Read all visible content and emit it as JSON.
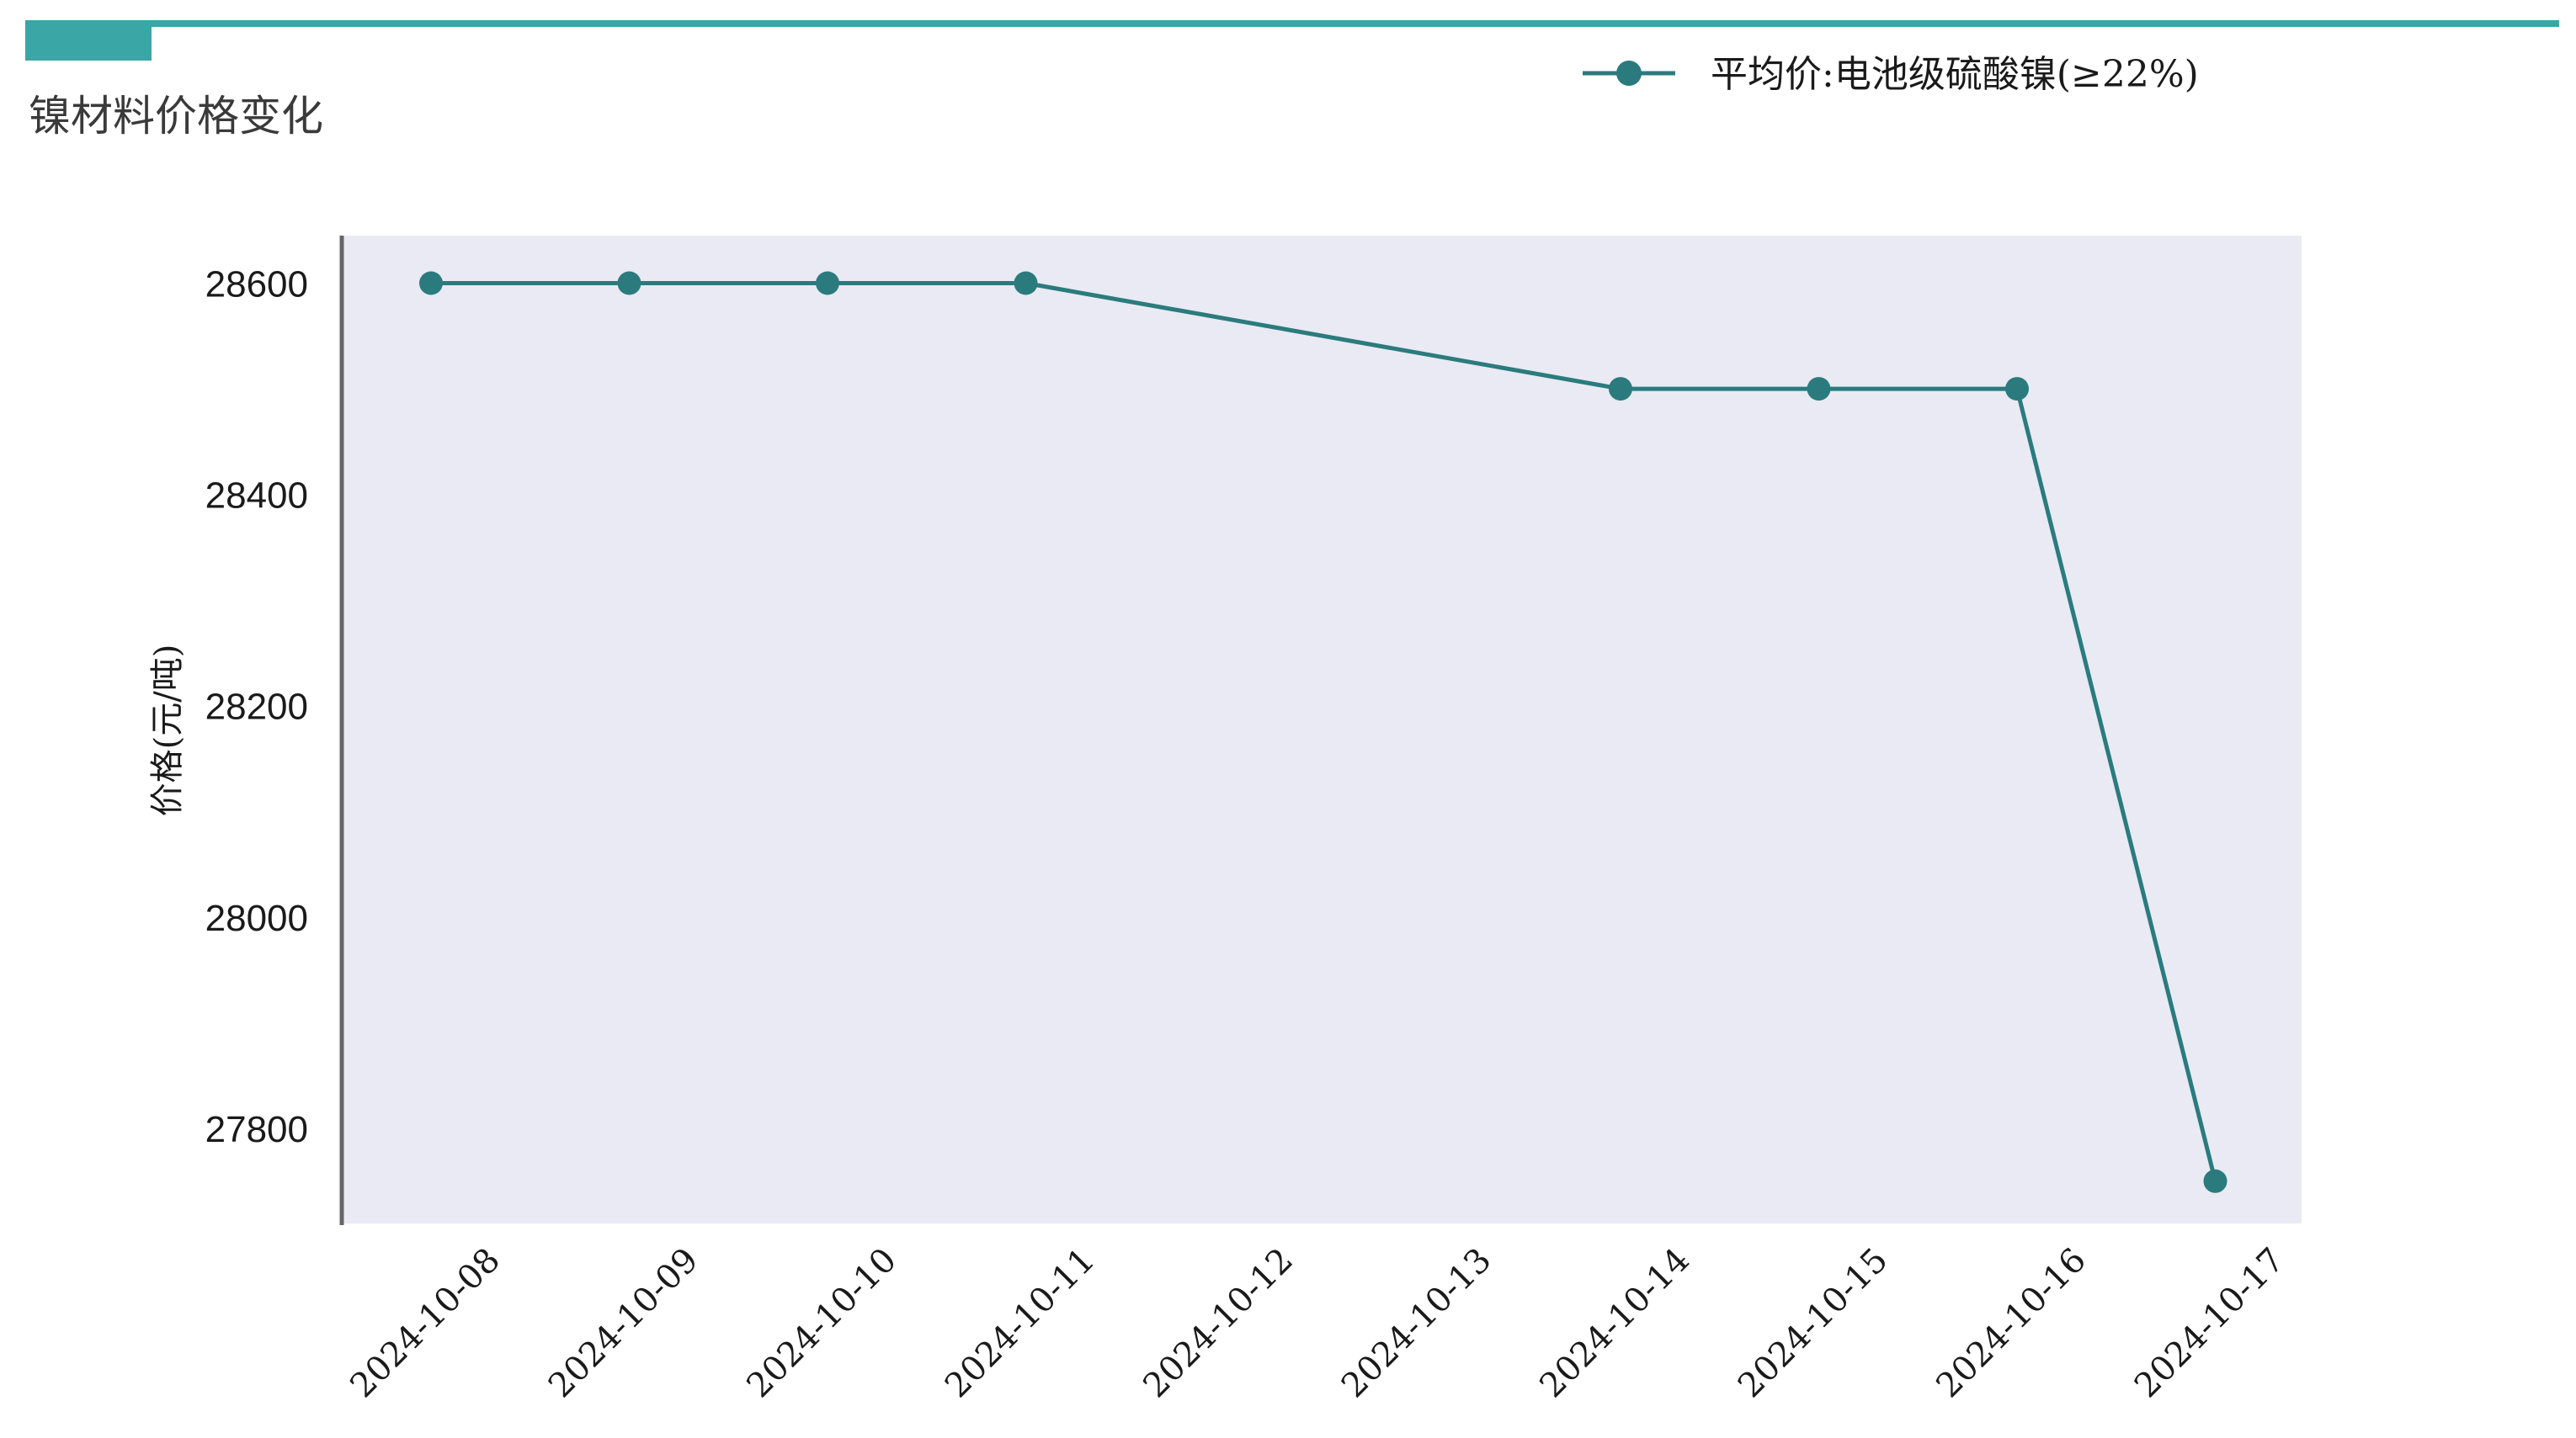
{
  "colors": {
    "accent": "#3aa6a6",
    "series": "#2b7b7e",
    "plot_background": "#e9eaf3",
    "axis_line": "#666666"
  },
  "chart_data": {
    "type": "line",
    "title": "镍材料价格变化",
    "ylabel": "价格(元/吨)",
    "xlabel": "",
    "x": [
      "2024-10-08",
      "2024-10-09",
      "2024-10-10",
      "2024-10-11",
      "2024-10-12",
      "2024-10-13",
      "2024-10-14",
      "2024-10-15",
      "2024-10-16",
      "2024-10-17"
    ],
    "series": [
      {
        "name": "平均价:电池级硫酸镍(≥22%)",
        "points": [
          {
            "x": "2024-10-08",
            "y": 28600
          },
          {
            "x": "2024-10-09",
            "y": 28600
          },
          {
            "x": "2024-10-10",
            "y": 28600
          },
          {
            "x": "2024-10-11",
            "y": 28600
          },
          {
            "x": "2024-10-14",
            "y": 28500
          },
          {
            "x": "2024-10-15",
            "y": 28500
          },
          {
            "x": "2024-10-16",
            "y": 28500
          },
          {
            "x": "2024-10-17",
            "y": 27750
          }
        ]
      }
    ],
    "yticks": [
      27800,
      28000,
      28200,
      28400,
      28600
    ],
    "ylim": [
      27710,
      28645
    ],
    "grid": false,
    "legend_position": "top-right"
  }
}
